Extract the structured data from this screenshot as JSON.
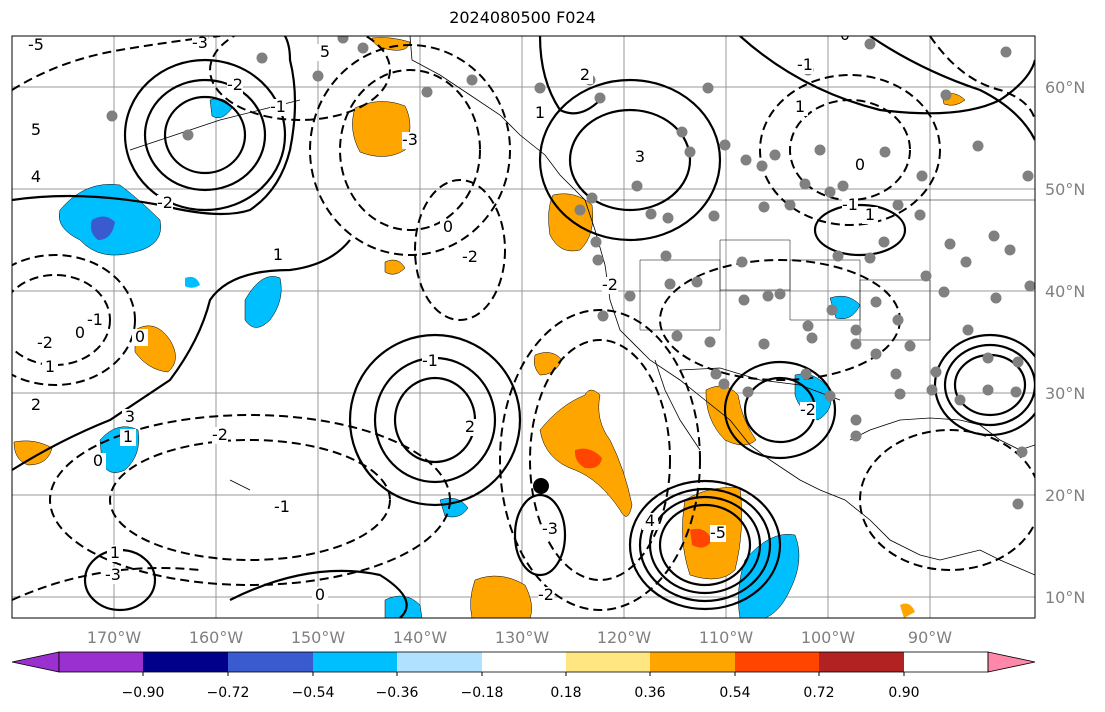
{
  "title": "2024080500 F024",
  "lat_labels": [
    "60°N",
    "50°N",
    "40°N",
    "30°N",
    "20°N",
    "10°N"
  ],
  "lon_labels": [
    "170°W",
    "160°W",
    "150°W",
    "140°W",
    "130°W",
    "120°W",
    "110°W",
    "100°W",
    "90°W"
  ],
  "colorbar": {
    "ticks": [
      "−0.90",
      "−0.72",
      "−0.54",
      "−0.36",
      "−0.18",
      "0.18",
      "0.36",
      "0.54",
      "0.72",
      "0.90"
    ],
    "colors": [
      "#9b30d0",
      "#00008b",
      "#3a5bd0",
      "#00bfff",
      "#b0e2ff",
      "#ffffff",
      "#ffe680",
      "#ffa500",
      "#ff4500",
      "#b22222",
      "#ff88aa"
    ]
  },
  "contour_labels": [
    "-5",
    "5",
    "4",
    "-3",
    "5",
    "-2",
    "-1",
    "-3",
    "3",
    "-2",
    "0",
    "1",
    "-2",
    "0",
    "-1",
    "1",
    "2",
    "-2",
    "0",
    "1",
    "-2",
    "-1",
    "0",
    "-3",
    "1",
    "3",
    "0",
    "-5",
    "4",
    "-3",
    "-2",
    "2",
    "-1",
    "0",
    "1",
    "0",
    "-1",
    "1",
    "-1",
    "2",
    "1",
    "-2",
    "-2"
  ],
  "marker": "storm-center"
}
